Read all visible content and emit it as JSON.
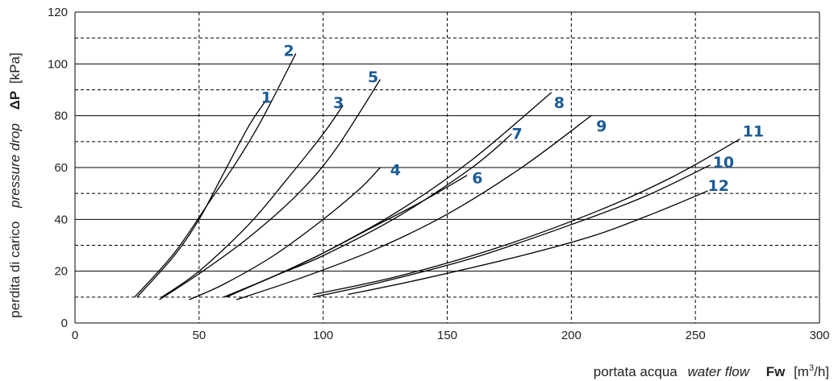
{
  "chart_data": {
    "type": "line",
    "x_axis": {
      "label_it": "portata acqua",
      "label_en": "water flow",
      "symbol": "Fw",
      "unit_pre": "[m",
      "unit_sup": "3",
      "unit_post": "/h]",
      "range": [
        0,
        300
      ],
      "ticks": [
        "0",
        "50",
        "100",
        "150",
        "200",
        "250",
        "300"
      ]
    },
    "y_axis": {
      "label_it": "perdita di carico",
      "label_en": "pressure drop",
      "symbol": "ΔP",
      "unit": "[kPa]",
      "range": [
        0,
        120
      ],
      "ticks": [
        "0",
        "20",
        "40",
        "60",
        "80",
        "100",
        "120"
      ]
    },
    "grid": {
      "major_horizontal": true,
      "minor_dashed": true,
      "vertical_dashed": true
    },
    "series": [
      {
        "name": "1",
        "x": [
          25,
          40,
          50,
          60,
          70,
          77
        ],
        "y": [
          10,
          26,
          40,
          58,
          76,
          86
        ]
      },
      {
        "name": "2",
        "x": [
          24,
          40,
          55,
          65,
          75,
          89
        ],
        "y": [
          10,
          27,
          48,
          62,
          78,
          104
        ]
      },
      {
        "name": "3",
        "x": [
          35,
          50,
          70,
          85,
          100,
          108
        ],
        "y": [
          10,
          20,
          38,
          55,
          73,
          84
        ]
      },
      {
        "name": "5",
        "x": [
          34,
          50,
          70,
          90,
          105,
          123
        ],
        "y": [
          9,
          19,
          33,
          50,
          67,
          94
        ]
      },
      {
        "name": "4",
        "x": [
          46,
          60,
          80,
          100,
          115,
          123
        ],
        "y": [
          9,
          15,
          26,
          40,
          52,
          60
        ]
      },
      {
        "name": "6",
        "x": [
          60,
          80,
          100,
          120,
          140,
          158
        ],
        "y": [
          10,
          18,
          27,
          37,
          47,
          57
        ]
      },
      {
        "name": "7",
        "x": [
          61,
          80,
          100,
          130,
          160,
          176
        ],
        "y": [
          10,
          18,
          26,
          41,
          60,
          73
        ]
      },
      {
        "name": "8",
        "x": [
          60,
          80,
          100,
          130,
          160,
          192
        ],
        "y": [
          10,
          18,
          27,
          43,
          63,
          89
        ]
      },
      {
        "name": "9",
        "x": [
          65,
          90,
          120,
          150,
          180,
          208
        ],
        "y": [
          9,
          17,
          28,
          42,
          60,
          80
        ]
      },
      {
        "name": "10",
        "x": [
          96,
          120,
          160,
          200,
          230,
          256
        ],
        "y": [
          10,
          15,
          25,
          38,
          49,
          61
        ]
      },
      {
        "name": "11",
        "x": [
          96,
          130,
          170,
          210,
          240,
          268
        ],
        "y": [
          11,
          18,
          29,
          43,
          56,
          71
        ]
      },
      {
        "name": "12",
        "x": [
          110,
          140,
          180,
          210,
          235,
          255
        ],
        "y": [
          11,
          17,
          26,
          34,
          43,
          51
        ]
      }
    ],
    "curve_labels": [
      {
        "text": "1",
        "x": 75,
        "y": 85
      },
      {
        "text": "2",
        "x": 84,
        "y": 103
      },
      {
        "text": "3",
        "x": 104,
        "y": 83
      },
      {
        "text": "5",
        "x": 118,
        "y": 93
      },
      {
        "text": "4",
        "x": 127,
        "y": 57
      },
      {
        "text": "6",
        "x": 160,
        "y": 54
      },
      {
        "text": "7",
        "x": 176,
        "y": 71
      },
      {
        "text": "8",
        "x": 193,
        "y": 83
      },
      {
        "text": "9",
        "x": 210,
        "y": 74
      },
      {
        "text": "11",
        "x": 269,
        "y": 72
      },
      {
        "text": "10",
        "x": 257,
        "y": 60
      },
      {
        "text": "12",
        "x": 255,
        "y": 51
      }
    ]
  }
}
